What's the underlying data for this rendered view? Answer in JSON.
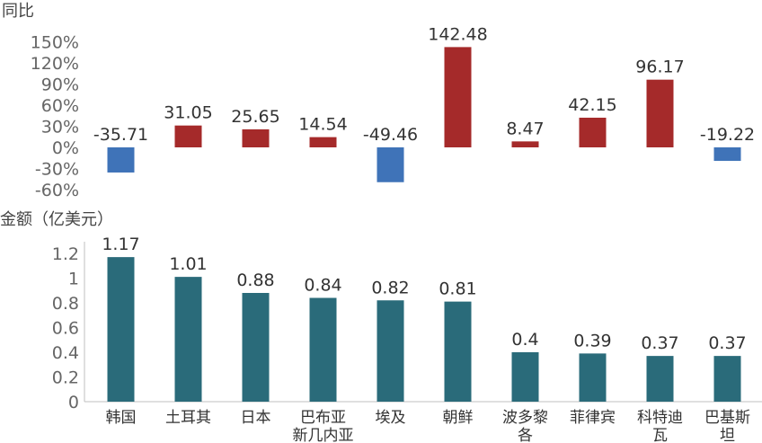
{
  "chart_data": [
    {
      "type": "bar",
      "ylabel": "同比",
      "ytick_labels": [
        "150%",
        "120%",
        "90%",
        "60%",
        "30%",
        "0%",
        "-30%",
        "-60%"
      ],
      "ylim": [
        -60,
        150
      ],
      "grid": false,
      "categories": [
        "韩国",
        "土耳其",
        "日本",
        "巴布亚新几内亚",
        "埃及",
        "朝鲜",
        "波多黎各",
        "菲律宾",
        "科特迪瓦",
        "巴基斯坦"
      ],
      "value_labels": [
        "-35.71",
        "31.05",
        "25.65",
        "14.54",
        "-49.46",
        "142.48",
        "8.47",
        "42.15",
        "96.17",
        "-19.22"
      ],
      "values": [
        -35.71,
        31.05,
        25.65,
        14.54,
        -49.46,
        142.48,
        8.47,
        42.15,
        96.17,
        -19.22
      ],
      "colors": {
        "positive": "#a52a2a",
        "negative": "#3f73b8"
      }
    },
    {
      "type": "bar",
      "ylabel": "金额（亿美元）",
      "ytick_labels": [
        "1.2",
        "1",
        "0.8",
        "0.6",
        "0.4",
        "0.2",
        "0"
      ],
      "ylim": [
        0,
        1.2
      ],
      "grid": false,
      "categories": [
        "韩国",
        "土耳其",
        "日本",
        "巴布亚新几内亚",
        "埃及",
        "朝鲜",
        "波多黎各",
        "菲律宾",
        "科特迪瓦",
        "巴基斯坦"
      ],
      "category_lines": [
        [
          "韩国"
        ],
        [
          "土耳其"
        ],
        [
          "日本"
        ],
        [
          "巴布亚",
          "新几内亚"
        ],
        [
          "埃及"
        ],
        [
          "朝鲜"
        ],
        [
          "波多黎",
          "各"
        ],
        [
          "菲律宾"
        ],
        [
          "科特迪",
          "瓦"
        ],
        [
          "巴基斯",
          "坦"
        ]
      ],
      "value_labels": [
        "1.17",
        "1.01",
        "0.88",
        "0.84",
        "0.82",
        "0.81",
        "0.4",
        "0.39",
        "0.37",
        "0.37"
      ],
      "values": [
        1.17,
        1.01,
        0.88,
        0.84,
        0.82,
        0.81,
        0.4,
        0.39,
        0.37,
        0.37
      ],
      "color": "#2a6b7a"
    }
  ]
}
